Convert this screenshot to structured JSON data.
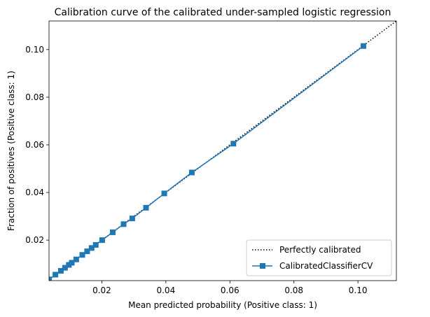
{
  "chart_data": {
    "type": "line",
    "title": "Calibration curve of the calibrated under-sampled logistic regression",
    "xlabel": "Mean predicted probability (Positive class: 1)",
    "ylabel": "Fraction of positives (Positive class: 1)",
    "xlim": [
      0.0035,
      0.112
    ],
    "ylim": [
      0.003,
      0.112
    ],
    "xticks": [
      0.02,
      0.04,
      0.06,
      0.08,
      0.1
    ],
    "xtick_labels": [
      "0.02",
      "0.04",
      "0.06",
      "0.08",
      "0.10"
    ],
    "yticks": [
      0.02,
      0.04,
      0.06,
      0.08,
      0.1
    ],
    "ytick_labels": [
      "0.02",
      "0.04",
      "0.06",
      "0.08",
      "0.10"
    ],
    "grid": false,
    "legend_position": "lower-right",
    "series": [
      {
        "name": "Perfectly calibrated",
        "style": "dotted",
        "color": "#000000",
        "x": [
          0.0,
          0.112
        ],
        "y": [
          0.0,
          0.112
        ]
      },
      {
        "name": "CalibratedClassifierCV",
        "style": "solid",
        "marker": "square",
        "color": "#1f77b4",
        "x": [
          0.0035,
          0.0055,
          0.0072,
          0.0085,
          0.0097,
          0.0106,
          0.012,
          0.0139,
          0.0154,
          0.0168,
          0.0181,
          0.0201,
          0.0234,
          0.0268,
          0.0295,
          0.0338,
          0.0395,
          0.0481,
          0.0611,
          0.1017
        ],
        "y": [
          0.0035,
          0.0055,
          0.0071,
          0.0084,
          0.0096,
          0.0105,
          0.0119,
          0.0138,
          0.0153,
          0.0167,
          0.018,
          0.02,
          0.0233,
          0.0267,
          0.0291,
          0.0336,
          0.0396,
          0.0484,
          0.0605,
          0.1015
        ]
      }
    ]
  }
}
